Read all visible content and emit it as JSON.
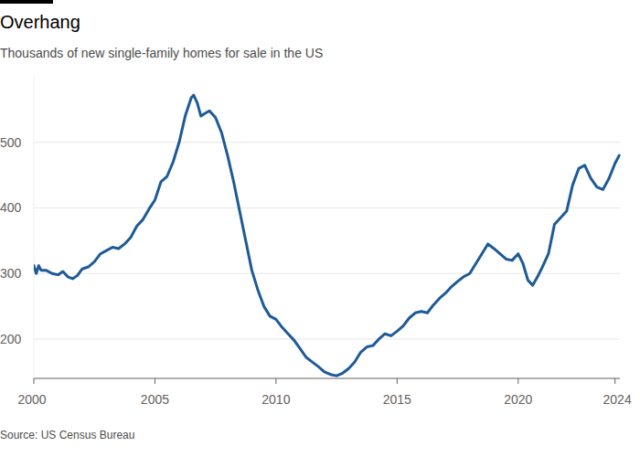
{
  "chart_data": {
    "type": "line",
    "title": "Overhang",
    "subtitle": "Thousands of new single-family homes for sale in the US",
    "source": "Source: US Census Bureau",
    "color": "#1d5a97",
    "grid": true,
    "x": [
      2000.0,
      2000.1,
      2000.2,
      2000.3,
      2000.5,
      2000.75,
      2001.0,
      2001.2,
      2001.4,
      2001.6,
      2001.8,
      2002.0,
      2002.25,
      2002.5,
      2002.75,
      2003.0,
      2003.25,
      2003.5,
      2003.75,
      2004.0,
      2004.25,
      2004.5,
      2004.75,
      2005.0,
      2005.25,
      2005.5,
      2005.75,
      2006.0,
      2006.25,
      2006.5,
      2006.6,
      2006.75,
      2006.9,
      2007.1,
      2007.25,
      2007.5,
      2007.75,
      2008.0,
      2008.25,
      2008.5,
      2008.75,
      2009.0,
      2009.25,
      2009.5,
      2009.75,
      2010.0,
      2010.25,
      2010.5,
      2010.75,
      2011.0,
      2011.25,
      2011.5,
      2011.75,
      2012.0,
      2012.25,
      2012.5,
      2012.75,
      2013.0,
      2013.25,
      2013.5,
      2013.75,
      2014.0,
      2014.25,
      2014.5,
      2014.75,
      2015.0,
      2015.25,
      2015.5,
      2015.75,
      2016.0,
      2016.25,
      2016.5,
      2016.75,
      2017.0,
      2017.25,
      2017.5,
      2017.75,
      2018.0,
      2018.25,
      2018.5,
      2018.75,
      2019.0,
      2019.25,
      2019.5,
      2019.75,
      2020.0,
      2020.2,
      2020.4,
      2020.6,
      2020.8,
      2021.0,
      2021.25,
      2021.5,
      2021.75,
      2022.0,
      2022.25,
      2022.5,
      2022.75,
      2023.0,
      2023.25,
      2023.5,
      2023.75,
      2024.0,
      2024.17
    ],
    "values": [
      312,
      300,
      312,
      305,
      305,
      300,
      298,
      303,
      295,
      292,
      297,
      307,
      310,
      318,
      330,
      335,
      340,
      338,
      345,
      355,
      372,
      382,
      398,
      412,
      440,
      448,
      470,
      500,
      540,
      568,
      572,
      560,
      540,
      545,
      548,
      538,
      515,
      480,
      440,
      395,
      350,
      305,
      275,
      250,
      235,
      230,
      218,
      208,
      198,
      185,
      172,
      165,
      158,
      150,
      146,
      144,
      148,
      155,
      165,
      180,
      188,
      190,
      200,
      208,
      205,
      212,
      220,
      232,
      240,
      242,
      240,
      252,
      262,
      270,
      280,
      288,
      295,
      300,
      315,
      330,
      345,
      338,
      330,
      322,
      320,
      330,
      315,
      290,
      282,
      295,
      310,
      330,
      375,
      385,
      395,
      435,
      460,
      465,
      445,
      432,
      428,
      445,
      468,
      480
    ],
    "xlim": [
      2000,
      2024.2
    ],
    "xticks": [
      2000,
      2005,
      2010,
      2015,
      2020,
      2024
    ],
    "ylim": [
      140,
      600
    ],
    "yticks": [
      200,
      300,
      400,
      500
    ]
  }
}
